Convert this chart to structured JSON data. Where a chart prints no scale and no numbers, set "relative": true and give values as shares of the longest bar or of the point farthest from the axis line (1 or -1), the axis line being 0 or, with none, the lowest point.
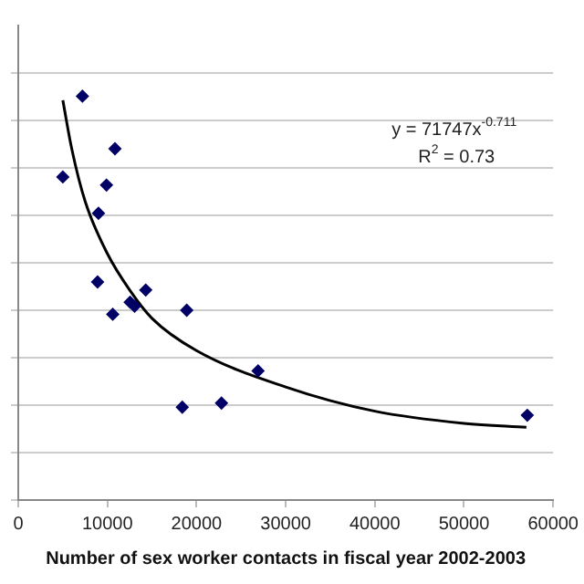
{
  "chart_data": {
    "type": "scatter",
    "relative": true,
    "xlabel": "Number of sex worker contacts in fiscal year 2002-2003",
    "annotations": [
      "y = 71747x$^{-0.711}$",
      "R$^{2}$ = 0.73"
    ],
    "xlim": [
      0,
      60000
    ],
    "xticks": [
      0,
      10000,
      20000,
      30000,
      40000,
      50000,
      60000
    ],
    "tick_labels": "x",
    "grid": "y",
    "marker": "diamond",
    "series": [
      {
        "color": "#000066",
        "x": [
          5000,
          7200,
          10850,
          9900,
          9000,
          8900,
          10600,
          12550,
          13050,
          14300,
          18900,
          18400,
          22800,
          26900,
          57100
        ],
        "values": [
          0.8,
          1,
          0.87,
          0.78,
          0.71,
          0.54,
          0.46,
          0.49,
          0.48,
          0.52,
          0.47,
          0.23,
          0.24,
          0.32,
          0.21
        ]
      },
      {
        "type": "line",
        "color": "#000000",
        "marker": "none",
        "x": [
          5000,
          6000,
          7500,
          10000,
          12500,
          15000,
          20000,
          30000,
          40000,
          50000,
          57000
        ],
        "values": [
          0.99,
          0.87,
          0.74,
          0.61,
          0.52,
          0.45,
          0.37,
          0.28,
          0.22,
          0.19,
          0.18
        ]
      }
    ]
  }
}
